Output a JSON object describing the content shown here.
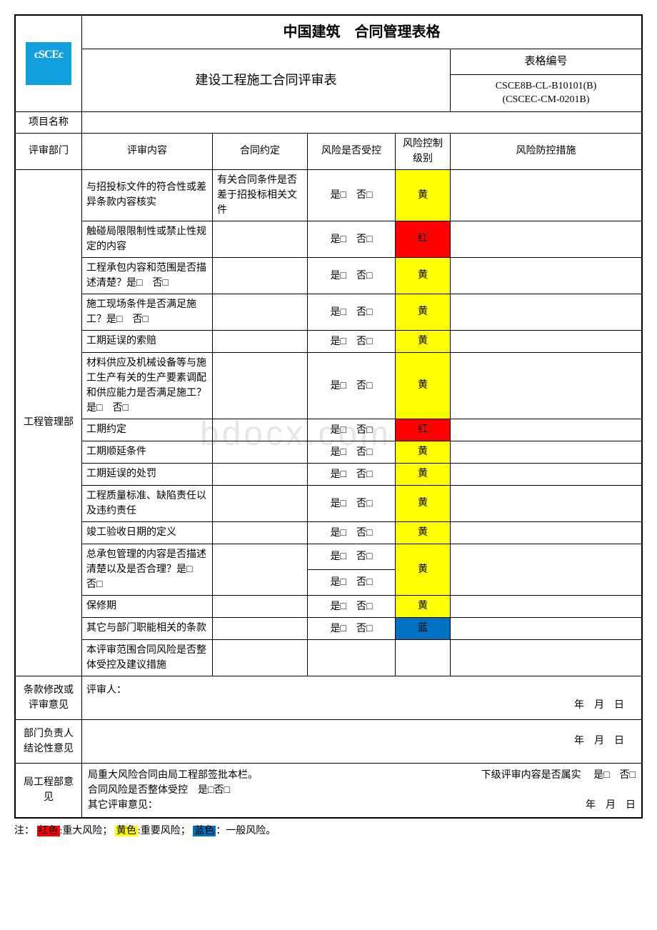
{
  "header": {
    "main_title": "中国建筑　合同管理表格",
    "sub_title": "建设工程施工合同评审表",
    "form_no_label": "表格编号",
    "form_no_1": "CSCE8B-CL-B10101(B)",
    "form_no_2": "(CSCEC-CM-0201B)",
    "logo_top": "cSCEc",
    "logo_bot": ""
  },
  "labels": {
    "project_name": "项目名称",
    "dept": "评审部门",
    "content": "评审内容",
    "agreement": "合同约定",
    "controlled": "风险是否受控",
    "risk_level": "风险控制级别",
    "measure": "风险防控措施",
    "yes": "是",
    "no": "否",
    "box": "□"
  },
  "risk_text": {
    "yellow": "黄",
    "red": "红",
    "blue": "蓝"
  },
  "dept1": "工程管理部",
  "rows": [
    {
      "content": "与招投标文件的符合性或差异条款内容核实",
      "agreement": "有关合同条件是否差于招投标相关文件",
      "risk": "yellow"
    },
    {
      "content": "触碰局限限制性或禁止性规定的内容",
      "agreement": "",
      "risk": "red"
    },
    {
      "content": "工程承包内容和范围是否描述清楚？是□　否□",
      "agreement": "",
      "risk": "yellow"
    },
    {
      "content": "施工现场条件是否满足施工？是□　否□",
      "agreement": "",
      "risk": "yellow"
    },
    {
      "content": "工期延误的索赔",
      "agreement": "",
      "risk": "yellow"
    },
    {
      "content": "材料供应及机械设备等与施工生产有关的生产要素调配和供应能力是否满足施工？是□　否□",
      "agreement": "",
      "risk": "yellow"
    },
    {
      "content": "工期约定",
      "agreement": "",
      "risk": "red"
    },
    {
      "content": "工期顺延条件",
      "agreement": "",
      "risk": "yellow"
    },
    {
      "content": "工期延误的处罚",
      "agreement": "",
      "risk": "yellow"
    },
    {
      "content": "工程质量标准、缺陷责任以及违约责任",
      "agreement": "",
      "risk": "yellow"
    },
    {
      "content": "竣工验收日期的定义",
      "agreement": "",
      "risk": "yellow"
    },
    {
      "content": "总承包管理的内容是否描述清楚以及是否合理？是□　否□",
      "agreement": "",
      "risk": "yellow",
      "extra_yn_above": true
    },
    {
      "content": "保修期",
      "agreement": "",
      "risk": "yellow"
    },
    {
      "content": "其它与部门职能相关的条款",
      "agreement": "",
      "risk": "blue"
    },
    {
      "content": "本评审范围合同风险是否整体受控及建议措施",
      "agreement": "",
      "risk": ""
    }
  ],
  "sig": {
    "row1_label": "条款修改或评审意见",
    "row1_body": "评审人：",
    "row2_label": "部门负责人结论性意见",
    "row3_label": "局工程部意见",
    "row3_line1_a": "局重大风险合同由局工程部签批本栏。",
    "row3_line1_b": "下级评审内容是否属实",
    "row3_line2": "合同风险是否整体受控　是□否□",
    "row3_line3": "其它评审意见：",
    "date": "年　月　日",
    "yes_no": "是□　否□"
  },
  "footnote": {
    "prefix": "注：",
    "red": "红色",
    "red_txt": ":重大风险；",
    "yellow": "黄色",
    "yellow_txt": ":重要风险；",
    "blue": "蓝色",
    "blue_txt": "：一般风险。"
  },
  "watermark": "bdocx.com",
  "colors": {
    "yellow": "#ffff00",
    "red": "#ff0000",
    "blue": "#0070c0",
    "logo_bg": "#129fe0"
  }
}
